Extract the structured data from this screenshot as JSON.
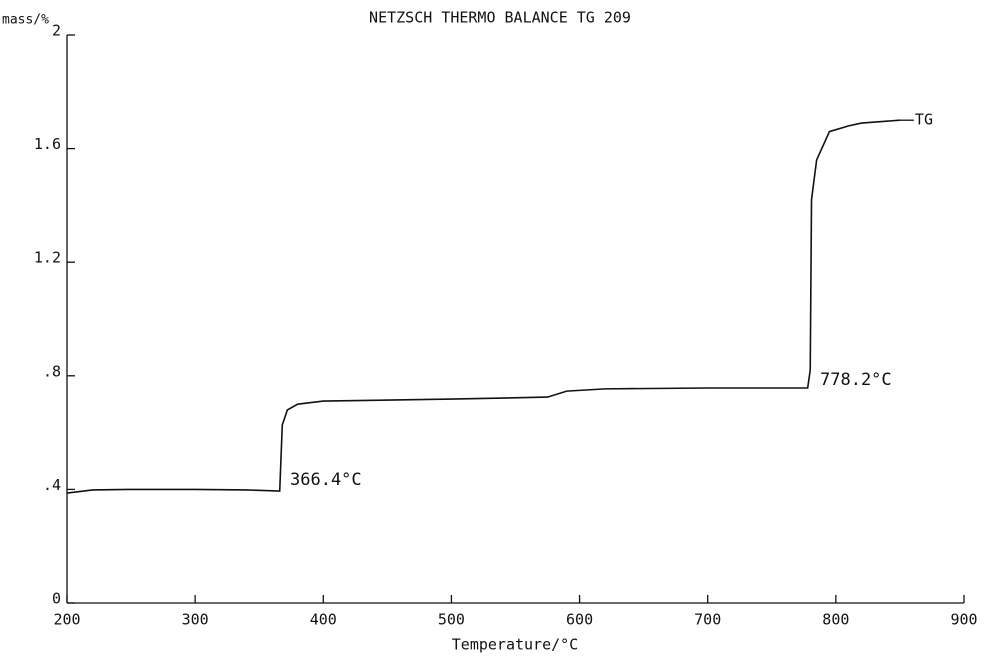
{
  "chart_data": {
    "type": "line",
    "title": "NETZSCH  THERMO BALANCE TG 209",
    "x_label": "Temperature/°C",
    "y_label": "mass/%",
    "annotations": [
      "366.4°C",
      "778.2°C"
    ],
    "xlim": [
      200,
      900
    ],
    "xticks": [
      200,
      300,
      400,
      500,
      600,
      700,
      800,
      900
    ],
    "ylim": [
      0,
      2
    ],
    "yticks": [
      0,
      {
        "value": 0.4,
        "label": ".4"
      },
      {
        "value": 0.8,
        "label": ".8"
      },
      1.2,
      1.6,
      2
    ],
    "grid": false,
    "series": [
      {
        "name": "TG",
        "color": "#111111",
        "x": [
          200,
          220,
          250,
          300,
          340,
          366,
          368,
          372,
          380,
          400,
          500,
          575,
          590,
          620,
          700,
          778,
          780,
          781,
          785,
          795,
          810,
          820,
          850
        ],
        "values": [
          0.387,
          0.398,
          0.4,
          0.4,
          0.398,
          0.394,
          0.627,
          0.68,
          0.7,
          0.711,
          0.718,
          0.725,
          0.746,
          0.754,
          0.757,
          0.757,
          0.82,
          1.42,
          1.56,
          1.66,
          1.68,
          1.69,
          1.7
        ]
      }
    ]
  }
}
